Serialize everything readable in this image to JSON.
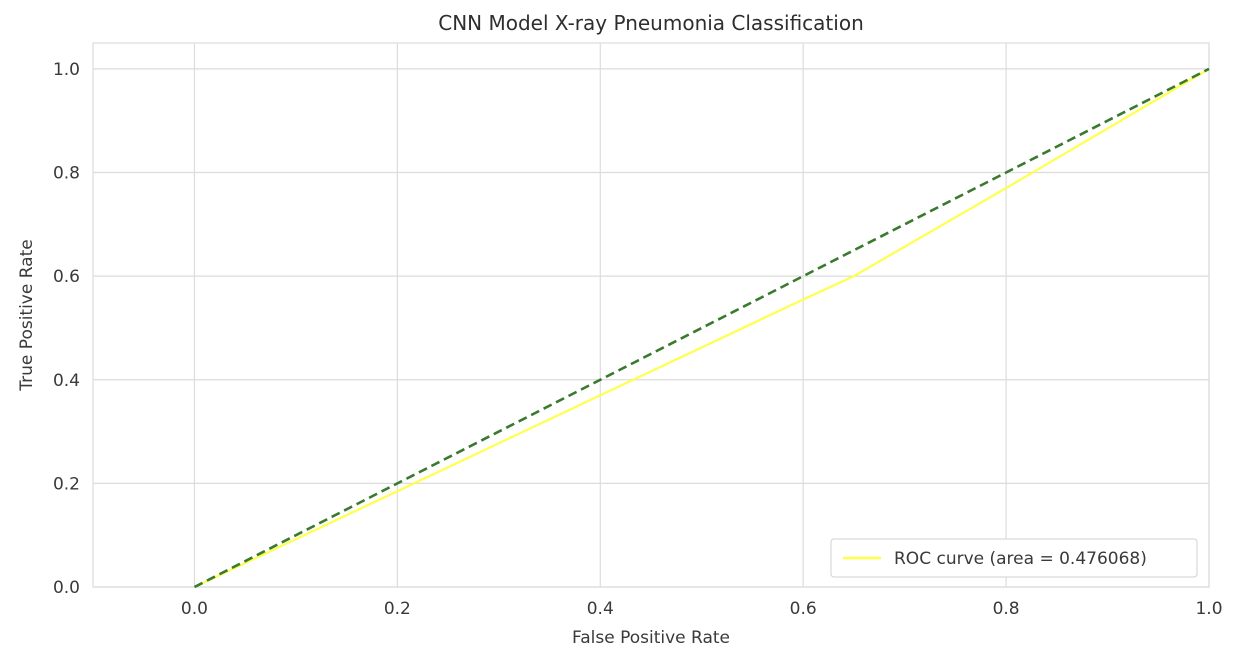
{
  "chart_data": {
    "type": "line",
    "title": "CNN Model X-ray Pneumonia Classification",
    "xlabel": "False Positive Rate",
    "ylabel": "True Positive Rate",
    "xlim": [
      -0.1,
      1.0
    ],
    "ylim": [
      0.0,
      1.05
    ],
    "xticks": [
      0.0,
      0.2,
      0.4,
      0.6,
      0.8,
      1.0
    ],
    "xtick_labels": [
      "0.0",
      "0.2",
      "0.4",
      "0.6",
      "0.8",
      "1.0"
    ],
    "yticks": [
      0.0,
      0.2,
      0.4,
      0.6,
      0.8,
      1.0
    ],
    "ytick_labels": [
      "0.0",
      "0.2",
      "0.4",
      "0.6",
      "0.8",
      "1.0"
    ],
    "grid": true,
    "legend_position": "lower-right",
    "series": [
      {
        "name": "ROC curve (area = 0.476068)",
        "color": "#ffff4d",
        "style": "solid",
        "x": [
          0.0,
          0.2,
          0.4,
          0.6,
          0.65,
          0.8,
          1.0
        ],
        "y": [
          0.0,
          0.185,
          0.37,
          0.555,
          0.6,
          0.77,
          1.0
        ]
      },
      {
        "color": "#3a7a2e",
        "style": "dashed",
        "x": [
          0.0,
          1.0
        ],
        "y": [
          0.0,
          1.0
        ]
      }
    ]
  }
}
